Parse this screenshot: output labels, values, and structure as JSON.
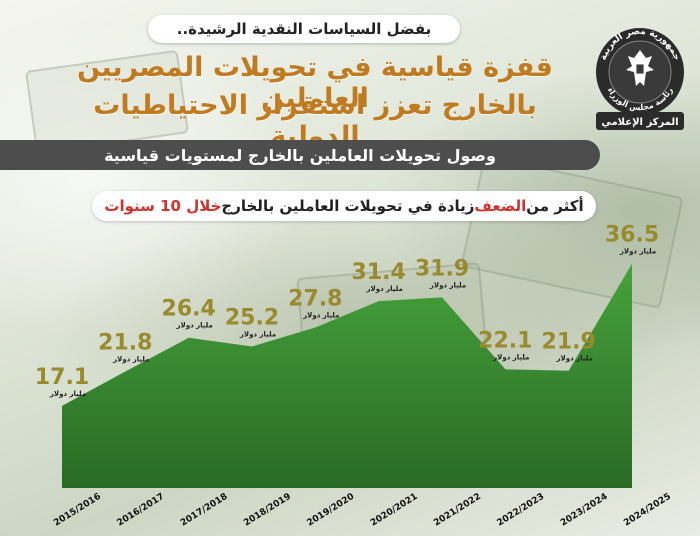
{
  "header": {
    "tagline": "بفضل السياسات النقدية الرشيدة..",
    "title_line1": "قفزة قياسية في تحويلات المصريين العاملين",
    "title_line2": "بالخارج تعزز استقرار الاحتياطيات الدولية"
  },
  "subtitle": "وصول تحويلات العاملين بالخارج لمستويات قياسية",
  "highlight": {
    "part1": "أكثر من ",
    "accent1": "الضعف",
    "part2": " زيادة في تحويلات العاملين بالخارج ",
    "accent2": "خلال 10 سنوات"
  },
  "logo": {
    "ring_text_top": "جمهورية مصر العربية",
    "ring_text_bottom": "رئاسة مجلس الوزراء",
    "caption": "المركز الإعلامي"
  },
  "chart_data": {
    "type": "area",
    "title": "أكثر من الضعف زيادة في تحويلات العاملين بالخارج خلال 10 سنوات",
    "categories": [
      "2015/2016",
      "2016/2017",
      "2017/2018",
      "2018/2019",
      "2019/2020",
      "2020/2021",
      "2021/2022",
      "2022/2023",
      "2023/2024",
      "2024/2025"
    ],
    "values": [
      17.1,
      21.8,
      26.4,
      25.2,
      27.8,
      31.4,
      31.9,
      22.1,
      21.9,
      36.5
    ],
    "value_labels": [
      "17.1",
      "21.8",
      "26.4",
      "25.2",
      "27.8",
      "31.4",
      "31.9",
      "22.1",
      "21.9",
      "36.5"
    ],
    "unit_label": "مليار دولار",
    "xlabel": "",
    "ylabel": "",
    "grid": false,
    "legend": "none",
    "colors": {
      "fill_top": "#46a23c",
      "fill_bottom": "#2a6a25",
      "value_text": "#9a8a2e",
      "accent": "#d3312c",
      "title": "#c07a1f"
    }
  }
}
